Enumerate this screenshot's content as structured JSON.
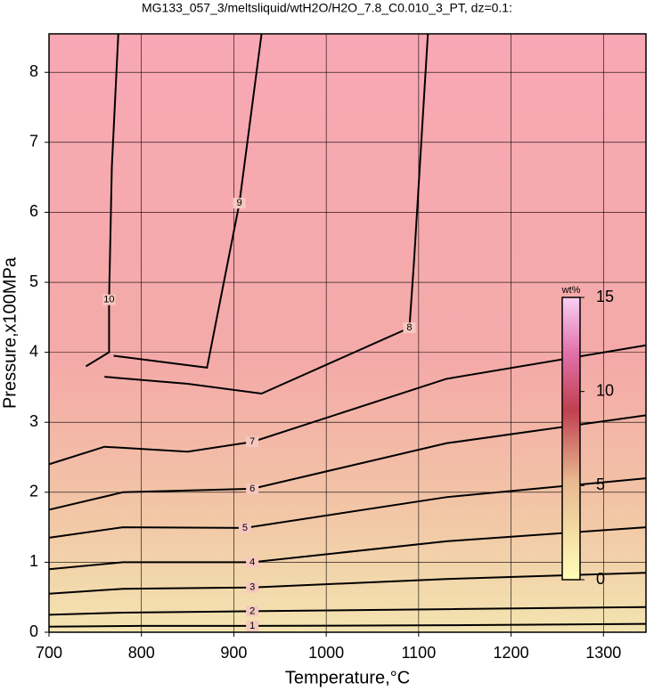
{
  "chart_data": {
    "type": "contour",
    "title": "MG133_057_3/meltsliquid/wtH2O/H2O_7.8_C0.010_3_PT, dz=0.1:",
    "x_label": "Temperature,°C",
    "y_label": "Pressure,x100MPa",
    "xlim": [
      700,
      1346
    ],
    "ylim": [
      0,
      8.55
    ],
    "xticks": [
      700,
      800,
      900,
      1000,
      1100,
      1200,
      1300
    ],
    "yticks": [
      0,
      1,
      2,
      3,
      4,
      5,
      6,
      7,
      8
    ],
    "grid": true,
    "series": [
      {
        "name": "1",
        "color": "#000000",
        "x": [
          700,
          800,
          920,
          1130,
          1346
        ],
        "values": [
          0.08,
          0.09,
          0.09,
          0.1,
          0.12
        ]
      },
      {
        "name": "2",
        "color": "#000000",
        "x": [
          700,
          780,
          920,
          1130,
          1346
        ],
        "values": [
          0.25,
          0.28,
          0.3,
          0.33,
          0.36
        ]
      },
      {
        "name": "3",
        "color": "#000000",
        "x": [
          700,
          780,
          920,
          1130,
          1346
        ],
        "values": [
          0.55,
          0.62,
          0.64,
          0.76,
          0.85
        ]
      },
      {
        "name": "4",
        "color": "#000000",
        "x": [
          700,
          780,
          920,
          1130,
          1346
        ],
        "values": [
          0.9,
          1.0,
          1.0,
          1.3,
          1.5
        ]
      },
      {
        "name": "5",
        "color": "#000000",
        "x": [
          700,
          780,
          912,
          1130,
          1346
        ],
        "values": [
          1.35,
          1.5,
          1.49,
          1.93,
          2.2
        ]
      },
      {
        "name": "6",
        "color": "#000000",
        "x": [
          700,
          780,
          920,
          1130,
          1346
        ],
        "values": [
          1.75,
          2.0,
          2.05,
          2.7,
          3.1
        ]
      },
      {
        "name": "7",
        "color": "#000000",
        "x": [
          700,
          760,
          850,
          920,
          1130,
          1346
        ],
        "values": [
          2.4,
          2.65,
          2.58,
          2.72,
          3.62,
          4.1
        ]
      },
      {
        "name": "8",
        "color": "#000000",
        "x": [
          760,
          850,
          930,
          1090,
          1095,
          1110
        ],
        "values": [
          3.65,
          3.55,
          3.41,
          4.35,
          5.3,
          8.55
        ]
      },
      {
        "name": "9",
        "color": "#000000",
        "x": [
          770,
          871,
          906,
          930
        ],
        "values": [
          3.95,
          3.78,
          6.13,
          8.55
        ]
      },
      {
        "name": "10",
        "color": "#000000",
        "x": [
          740,
          765,
          765,
          768,
          775
        ],
        "values": [
          3.8,
          4.0,
          4.75,
          6.65,
          8.55
        ]
      }
    ],
    "colorbar": {
      "label": "wt%",
      "ylim": [
        0,
        15
      ],
      "yticks": [
        0,
        5,
        10,
        15
      ]
    }
  }
}
